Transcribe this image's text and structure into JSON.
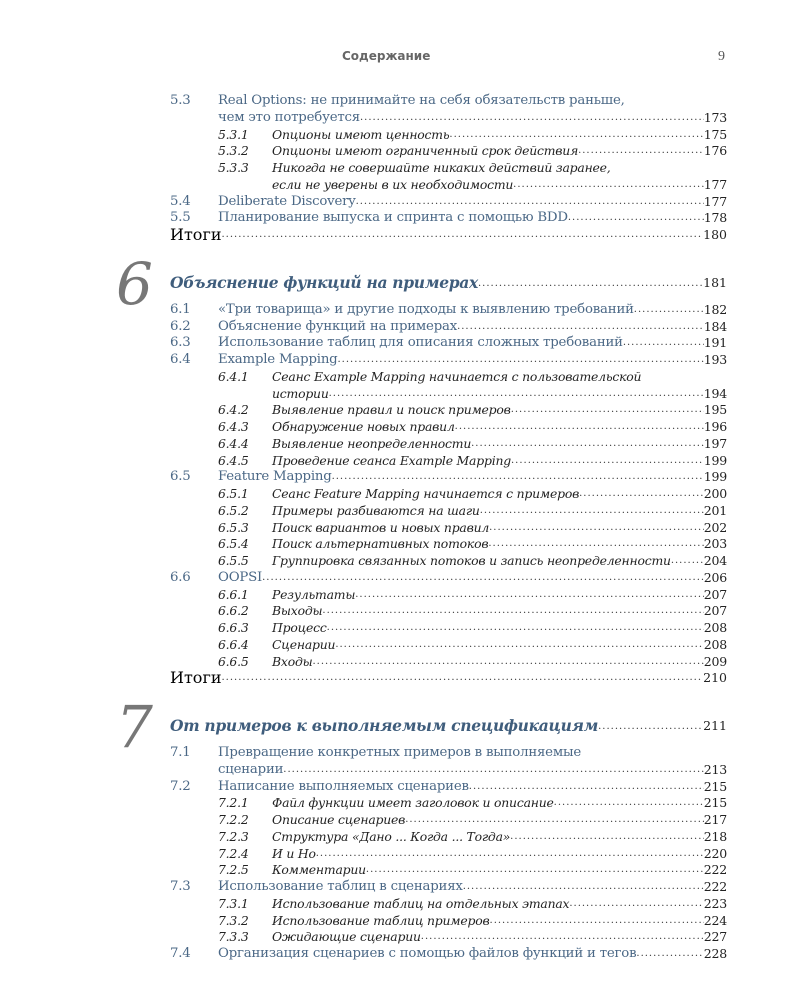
{
  "header": {
    "title": "Содержание",
    "page_number": "9"
  },
  "colors": {
    "section": "#4b6886",
    "chapter": "#3f5d7c",
    "subsection": "#222222",
    "chapter_number": "#777777"
  },
  "blocks": [
    {
      "entries": [
        {
          "level": "sec",
          "num": "5.3",
          "lines": [
            "Real Options: не принимайте на себя обязательств раньше,",
            "чем это потребуется"
          ],
          "page": "173"
        },
        {
          "level": "sub",
          "num": "5.3.1",
          "lines": [
            "Опционы имеют ценность"
          ],
          "page": "175"
        },
        {
          "level": "sub",
          "num": "5.3.2",
          "lines": [
            "Опционы имеют ограниченный срок действия"
          ],
          "page": "176"
        },
        {
          "level": "sub",
          "num": "5.3.3",
          "lines": [
            "Никогда не совершайте никаких действий заранее,",
            "если не уверены в их необходимости"
          ],
          "page": "177"
        },
        {
          "level": "sec",
          "num": "5.4",
          "lines": [
            "Deliberate Discovery"
          ],
          "page": "177"
        },
        {
          "level": "sec",
          "num": "5.5",
          "lines": [
            "Планирование выпуска и спринта с помощью BDD"
          ],
          "page": "178"
        },
        {
          "level": "sum",
          "num": "",
          "lines": [
            "Итоги"
          ],
          "page": "180"
        }
      ]
    },
    {
      "chapter": {
        "num": "6",
        "title": "Объяснение функций на примерах",
        "page": "181"
      },
      "entries": [
        {
          "level": "sec",
          "num": "6.1",
          "lines": [
            "«Три товарища» и другие подходы к выявлению требований"
          ],
          "page": "182"
        },
        {
          "level": "sec",
          "num": "6.2",
          "lines": [
            "Объяснение функций на примерах"
          ],
          "page": "184"
        },
        {
          "level": "sec",
          "num": "6.3",
          "lines": [
            "Использование таблиц для описания сложных требований"
          ],
          "page": "191"
        },
        {
          "level": "sec",
          "num": "6.4",
          "lines": [
            "Example Mapping"
          ],
          "page": "193"
        },
        {
          "level": "sub",
          "num": "6.4.1",
          "lines": [
            "Сеанс Example Mapping начинается с пользовательской",
            "истории"
          ],
          "page": "194"
        },
        {
          "level": "sub",
          "num": "6.4.2",
          "lines": [
            "Выявление правил и поиск примеров"
          ],
          "page": "195"
        },
        {
          "level": "sub",
          "num": "6.4.3",
          "lines": [
            "Обнаружение новых правил"
          ],
          "page": "196"
        },
        {
          "level": "sub",
          "num": "6.4.4",
          "lines": [
            "Выявление неопределенности"
          ],
          "page": "197"
        },
        {
          "level": "sub",
          "num": "6.4.5",
          "lines": [
            "Проведение сеанса Example Mapping"
          ],
          "page": "199"
        },
        {
          "level": "sec",
          "num": "6.5",
          "lines": [
            "Feature Mapping"
          ],
          "page": "199"
        },
        {
          "level": "sub",
          "num": "6.5.1",
          "lines": [
            "Сеанс Feature Mapping начинается с примеров"
          ],
          "page": "200"
        },
        {
          "level": "sub",
          "num": "6.5.2",
          "lines": [
            "Примеры разбиваются на шаги"
          ],
          "page": "201"
        },
        {
          "level": "sub",
          "num": "6.5.3",
          "lines": [
            "Поиск вариантов и новых правил"
          ],
          "page": "202"
        },
        {
          "level": "sub",
          "num": "6.5.4",
          "lines": [
            "Поиск альтернативных потоков"
          ],
          "page": "203"
        },
        {
          "level": "sub",
          "num": "6.5.5",
          "lines": [
            "Группировка связанных потоков и запись неопределенности"
          ],
          "page": "204"
        },
        {
          "level": "sec",
          "num": "6.6",
          "lines": [
            "OOPSI"
          ],
          "page": "206"
        },
        {
          "level": "sub",
          "num": "6.6.1",
          "lines": [
            "Результаты"
          ],
          "page": "207"
        },
        {
          "level": "sub",
          "num": "6.6.2",
          "lines": [
            "Выходы"
          ],
          "page": "207"
        },
        {
          "level": "sub",
          "num": "6.6.3",
          "lines": [
            "Процесс"
          ],
          "page": "208"
        },
        {
          "level": "sub",
          "num": "6.6.4",
          "lines": [
            "Сценарии"
          ],
          "page": "208"
        },
        {
          "level": "sub",
          "num": "6.6.5",
          "lines": [
            "Входы"
          ],
          "page": "209"
        },
        {
          "level": "sum",
          "num": "",
          "lines": [
            "Итоги"
          ],
          "page": "210"
        }
      ]
    },
    {
      "chapter": {
        "num": "7",
        "title": "От примеров к выполняемым спецификациям",
        "page": "211"
      },
      "entries": [
        {
          "level": "sec",
          "num": "7.1",
          "lines": [
            "Превращение конкретных примеров в выполняемые",
            "сценарии"
          ],
          "page": "213"
        },
        {
          "level": "sec",
          "num": "7.2",
          "lines": [
            "Написание выполняемых сценариев"
          ],
          "page": "215"
        },
        {
          "level": "sub",
          "num": "7.2.1",
          "lines": [
            "Файл функции имеет заголовок и описание"
          ],
          "page": "215"
        },
        {
          "level": "sub",
          "num": "7.2.2",
          "lines": [
            "Описание сценариев"
          ],
          "page": "217"
        },
        {
          "level": "sub",
          "num": "7.2.3",
          "lines": [
            "Структура «Дано ... Когда ... Тогда»"
          ],
          "page": "218"
        },
        {
          "level": "sub",
          "num": "7.2.4",
          "lines": [
            "И и Но"
          ],
          "page": "220"
        },
        {
          "level": "sub",
          "num": "7.2.5",
          "lines": [
            "Комментарии"
          ],
          "page": "222"
        },
        {
          "level": "sec",
          "num": "7.3",
          "lines": [
            "Использование таблиц в сценариях"
          ],
          "page": "222"
        },
        {
          "level": "sub",
          "num": "7.3.1",
          "lines": [
            "Использование таблиц на отдельных этапах"
          ],
          "page": "223"
        },
        {
          "level": "sub",
          "num": "7.3.2",
          "lines": [
            "Использование таблиц примеров"
          ],
          "page": "224"
        },
        {
          "level": "sub",
          "num": "7.3.3",
          "lines": [
            "Ожидающие сценарии"
          ],
          "page": "227"
        },
        {
          "level": "sec",
          "num": "7.4",
          "lines": [
            "Организация сценариев с помощью файлов функций и тегов"
          ],
          "page": "228"
        }
      ]
    }
  ]
}
